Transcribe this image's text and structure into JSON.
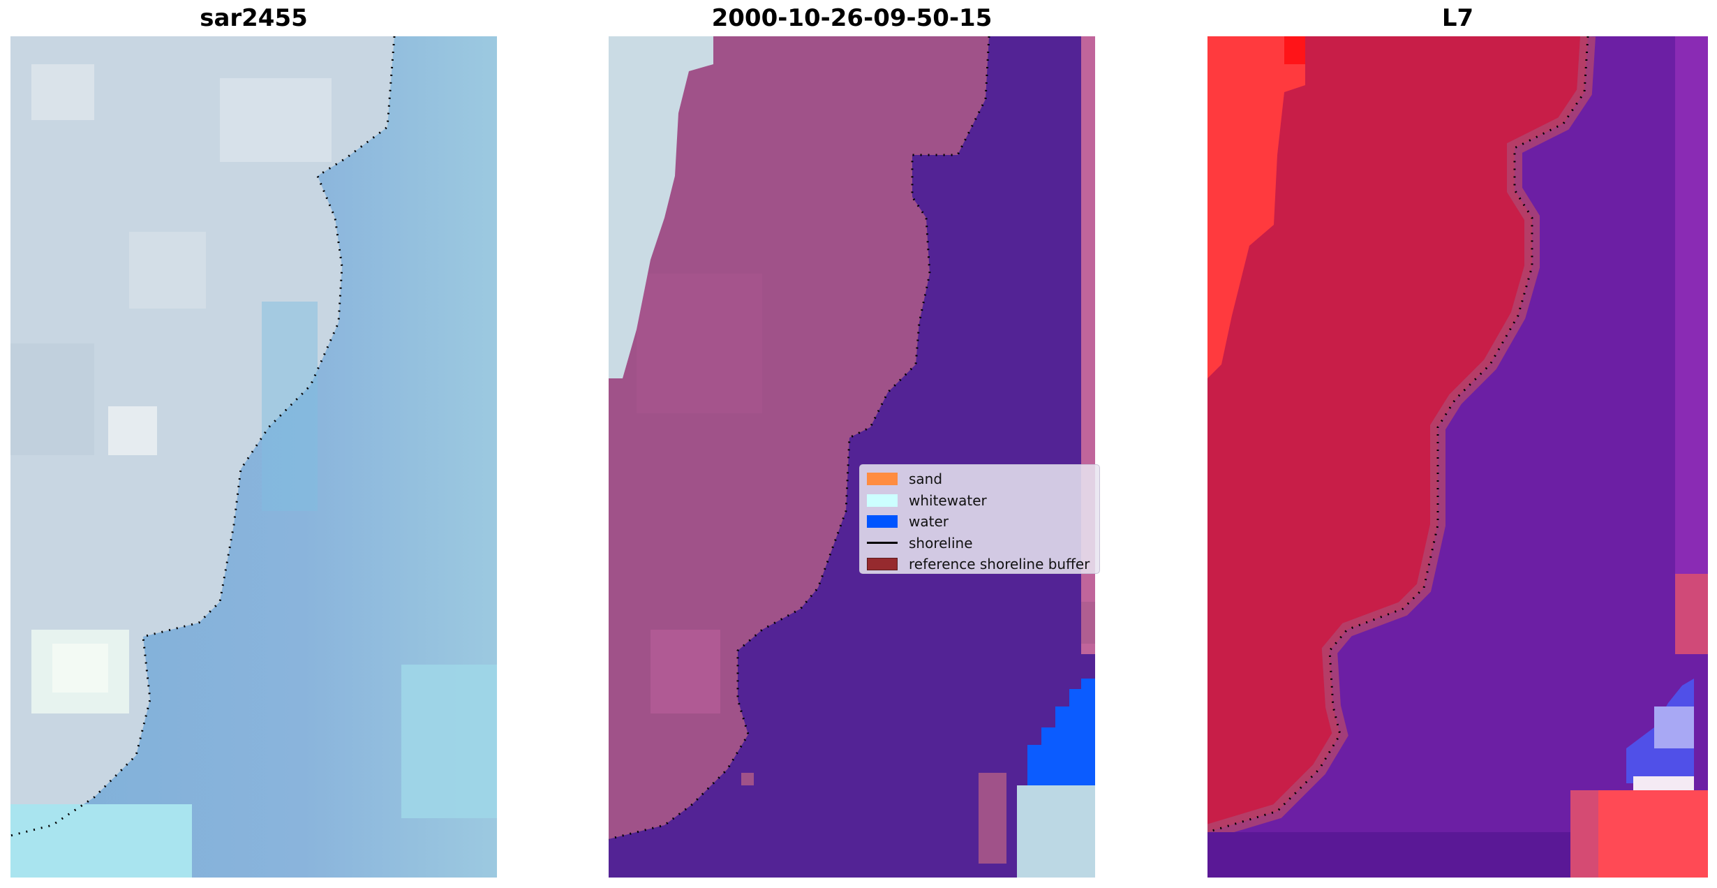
{
  "titles": {
    "panel1": "sar2455",
    "panel2": "2000-10-26-09-50-15",
    "panel3": "L7"
  },
  "legend": {
    "items": [
      {
        "label": "sand",
        "color": "#ff8c40",
        "kind": "patch"
      },
      {
        "label": "whitewater",
        "color": "#ccffff",
        "kind": "patch"
      },
      {
        "label": "water",
        "color": "#0055ff",
        "kind": "patch"
      },
      {
        "label": "shoreline",
        "color": "#000000",
        "kind": "line"
      },
      {
        "label": "reference shoreline buffer",
        "color": "#962a2e",
        "kind": "patch"
      }
    ]
  },
  "colors": {
    "sar_land": "#c9d7e3",
    "sar_water": "#86aed6",
    "class_land": "#a05289",
    "class_water": "#532395",
    "class_watercolor_blue": "#0b5cff",
    "ndwi_land": "#c81e48",
    "ndwi_water": "#6c1fa4",
    "ndwi_red": "#ff3838"
  }
}
